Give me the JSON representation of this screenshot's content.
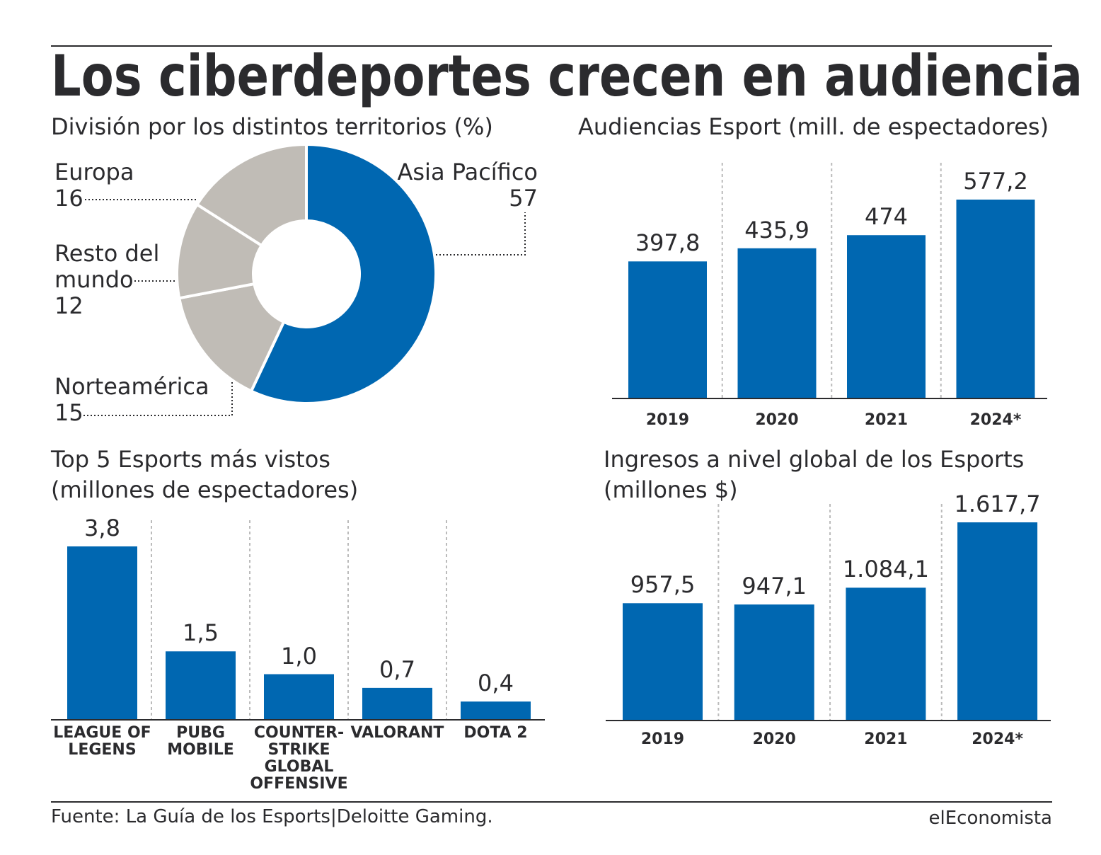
{
  "title": "Los ciberdeportes crecen en audiencia",
  "source": "Fuente: La Guía de los Esports|Deloitte Gaming.",
  "brand": "elEconomista",
  "chart_data": [
    {
      "type": "pie",
      "title": "División por los distintos territorios (%)",
      "categories": [
        "Asia Pacífico",
        "Norteamérica",
        "Resto del mundo",
        "Europa"
      ],
      "values": [
        57,
        15,
        12,
        16
      ],
      "colors": [
        "#0067b1",
        "#c0bcb6",
        "#c0bcb6",
        "#c0bcb6"
      ]
    },
    {
      "type": "bar",
      "title": "Audiencias Esport (mill. de espectadores)",
      "categories": [
        "2019",
        "2020",
        "2021",
        "2024*"
      ],
      "values": [
        397.8,
        435.9,
        474,
        577.2
      ],
      "value_labels": [
        "397,8",
        "435,9",
        "474",
        "577,2"
      ],
      "color": "#0067b1"
    },
    {
      "type": "bar",
      "title": "Top 5 Esports más vistos",
      "subtitle": "(millones de espectadores)",
      "categories": [
        "LEAGUE OF LEGENS",
        "PUBG MOBILE",
        "COUNTER-STRIKE GLOBAL OFFENSIVE",
        "VALORANT",
        "DOTA 2"
      ],
      "values": [
        3.8,
        1.5,
        1.0,
        0.7,
        0.4
      ],
      "value_labels": [
        "3,8",
        "1,5",
        "1,0",
        "0,7",
        "0,4"
      ],
      "color": "#0067b1"
    },
    {
      "type": "bar",
      "title": "Ingresos a nivel global de los Esports",
      "subtitle": "(millones $)",
      "categories": [
        "2019",
        "2020",
        "2021",
        "2024*"
      ],
      "values": [
        957.5,
        947.1,
        1084.1,
        1617.7
      ],
      "value_labels": [
        "957,5",
        "947,1",
        "1.084,1",
        "1.617,7"
      ],
      "color": "#0067b1"
    }
  ]
}
